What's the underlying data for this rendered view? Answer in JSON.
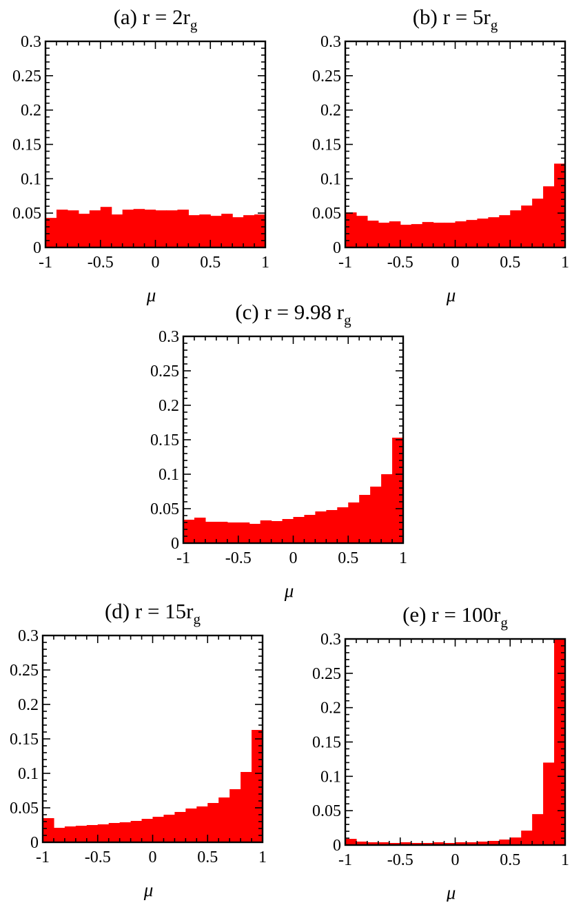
{
  "chart_data": [
    {
      "type": "bar",
      "title": "(a)  r = 2r",
      "title_subscript": "g",
      "xlabel": "μ",
      "xlim": [
        -1,
        1
      ],
      "ylim": [
        0,
        0.3
      ],
      "xticks": [
        "-1",
        "-0.5",
        "0",
        "0.5",
        "1"
      ],
      "yticks": [
        "0",
        "0.05",
        "0.1",
        "0.15",
        "0.2",
        "0.25",
        "0.3"
      ],
      "bin_edges": [
        -1,
        -0.9,
        -0.8,
        -0.7,
        -0.6,
        -0.5,
        -0.4,
        -0.3,
        -0.2,
        -0.1,
        0,
        0.1,
        0.2,
        0.3,
        0.4,
        0.5,
        0.6,
        0.7,
        0.8,
        0.9,
        1
      ],
      "values": [
        0.043,
        0.055,
        0.054,
        0.049,
        0.054,
        0.059,
        0.048,
        0.055,
        0.056,
        0.055,
        0.054,
        0.054,
        0.055,
        0.047,
        0.048,
        0.046,
        0.049,
        0.044,
        0.047,
        0.048
      ],
      "color": "#ff0000"
    },
    {
      "type": "bar",
      "title": "(b) r = 5r",
      "title_subscript": "g",
      "xlabel": "μ",
      "xlim": [
        -1,
        1
      ],
      "ylim": [
        0,
        0.3
      ],
      "xticks": [
        "-1",
        "-0.5",
        "0",
        "0.5",
        "1"
      ],
      "yticks": [
        "0",
        "0.05",
        "0.1",
        "0.15",
        "0.2",
        "0.25",
        "0.3"
      ],
      "bin_edges": [
        -1,
        -0.9,
        -0.8,
        -0.7,
        -0.6,
        -0.5,
        -0.4,
        -0.3,
        -0.2,
        -0.1,
        0,
        0.1,
        0.2,
        0.3,
        0.4,
        0.5,
        0.6,
        0.7,
        0.8,
        0.9,
        1
      ],
      "values": [
        0.051,
        0.046,
        0.039,
        0.036,
        0.038,
        0.033,
        0.034,
        0.037,
        0.036,
        0.036,
        0.038,
        0.04,
        0.042,
        0.044,
        0.047,
        0.054,
        0.061,
        0.071,
        0.089,
        0.122
      ],
      "color": "#ff0000"
    },
    {
      "type": "bar",
      "title": "(c) r = 9.98 r",
      "title_subscript": "g",
      "xlabel": "μ",
      "xlim": [
        -1,
        1
      ],
      "ylim": [
        0,
        0.3
      ],
      "xticks": [
        "-1",
        "-0.5",
        "0",
        "0.5",
        "1"
      ],
      "yticks": [
        "0",
        "0.05",
        "0.1",
        "0.15",
        "0.2",
        "0.25",
        "0.3"
      ],
      "bin_edges": [
        -1,
        -0.9,
        -0.8,
        -0.7,
        -0.6,
        -0.5,
        -0.4,
        -0.3,
        -0.2,
        -0.1,
        0,
        0.1,
        0.2,
        0.3,
        0.4,
        0.5,
        0.6,
        0.7,
        0.8,
        0.9,
        1
      ],
      "values": [
        0.034,
        0.037,
        0.031,
        0.031,
        0.03,
        0.03,
        0.028,
        0.033,
        0.032,
        0.035,
        0.038,
        0.041,
        0.046,
        0.048,
        0.052,
        0.059,
        0.07,
        0.082,
        0.1,
        0.153
      ],
      "color": "#ff0000"
    },
    {
      "type": "bar",
      "title": "(d) r = 15r",
      "title_subscript": "g",
      "xlabel": "μ",
      "xlim": [
        -1,
        1
      ],
      "ylim": [
        0,
        0.3
      ],
      "xticks": [
        "-1",
        "-0.5",
        "0",
        "0.5",
        "1"
      ],
      "yticks": [
        "0",
        "0.05",
        "0.1",
        "0.15",
        "0.2",
        "0.25",
        "0.3"
      ],
      "bin_edges": [
        -1,
        -0.9,
        -0.8,
        -0.7,
        -0.6,
        -0.5,
        -0.4,
        -0.3,
        -0.2,
        -0.1,
        0,
        0.1,
        0.2,
        0.3,
        0.4,
        0.5,
        0.6,
        0.7,
        0.8,
        0.9,
        1
      ],
      "values": [
        0.035,
        0.021,
        0.023,
        0.024,
        0.025,
        0.026,
        0.028,
        0.029,
        0.031,
        0.034,
        0.037,
        0.04,
        0.044,
        0.049,
        0.052,
        0.057,
        0.065,
        0.077,
        0.102,
        0.163
      ],
      "color": "#ff0000"
    },
    {
      "type": "bar",
      "title": "(e) r = 100r",
      "title_subscript": "g",
      "xlabel": "μ",
      "xlim": [
        -1,
        1
      ],
      "ylim": [
        0,
        0.3
      ],
      "xticks": [
        "-1",
        "-0.5",
        "0",
        "0.5",
        "1"
      ],
      "yticks": [
        "0",
        "0.05",
        "0.1",
        "0.15",
        "0.2",
        "0.25",
        "0.3"
      ],
      "bin_edges": [
        -1,
        -0.9,
        -0.8,
        -0.7,
        -0.6,
        -0.5,
        -0.4,
        -0.3,
        -0.2,
        -0.1,
        0,
        0.1,
        0.2,
        0.3,
        0.4,
        0.5,
        0.6,
        0.7,
        0.8,
        0.9,
        1
      ],
      "values": [
        0.009,
        0.005,
        0.004,
        0.004,
        0.003,
        0.004,
        0.003,
        0.003,
        0.004,
        0.003,
        0.004,
        0.004,
        0.005,
        0.006,
        0.008,
        0.011,
        0.021,
        0.045,
        0.12,
        0.3
      ],
      "color": "#ff0000"
    }
  ]
}
